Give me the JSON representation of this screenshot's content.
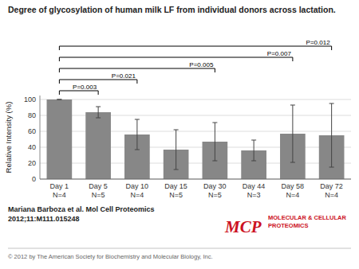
{
  "chart_data": {
    "type": "bar",
    "title": "Degree of glycosylation of human milk LF from individual donors across lactation.",
    "ylabel": "Relative Intensity (%)",
    "categories": [
      "Day 1\nN=4",
      "Day 5\nN=5",
      "Day 10\nN=4",
      "Day 15\nN=5",
      "Day 30\nN=5",
      "Day 44\nN=3",
      "Day 58\nN=4",
      "Day 72\nN=4"
    ],
    "values": [
      100,
      84,
      56,
      37,
      47,
      36,
      57,
      55
    ],
    "errors": [
      0,
      7,
      19,
      25,
      24,
      13,
      36,
      40
    ],
    "color": "#878787",
    "ylim": [
      0,
      105
    ],
    "yticks": [
      0,
      20,
      40,
      60,
      80,
      100
    ],
    "grid": true,
    "annotations": [
      {
        "text": "P=0.003",
        "x1": 0,
        "x2": 1
      },
      {
        "text": "P=0.021",
        "x1": 0,
        "x2": 2
      },
      {
        "text": "P=0.005",
        "x1": 0,
        "x2": 4
      },
      {
        "text": "P=0.007",
        "x1": 0,
        "x2": 6
      },
      {
        "text": "P=0.012",
        "x1": 0,
        "x2": 7
      }
    ],
    "citation": [
      "Mariana Barboza et al. Mol Cell Proteomics",
      "2012;11:M111.015248"
    ],
    "footer": "© 2012 by The American Society for Biochemistry and Molecular Biology, Inc.",
    "logo": [
      "MCP",
      "MOLECULAR & CELLULAR",
      "PROTEOMICS"
    ]
  }
}
